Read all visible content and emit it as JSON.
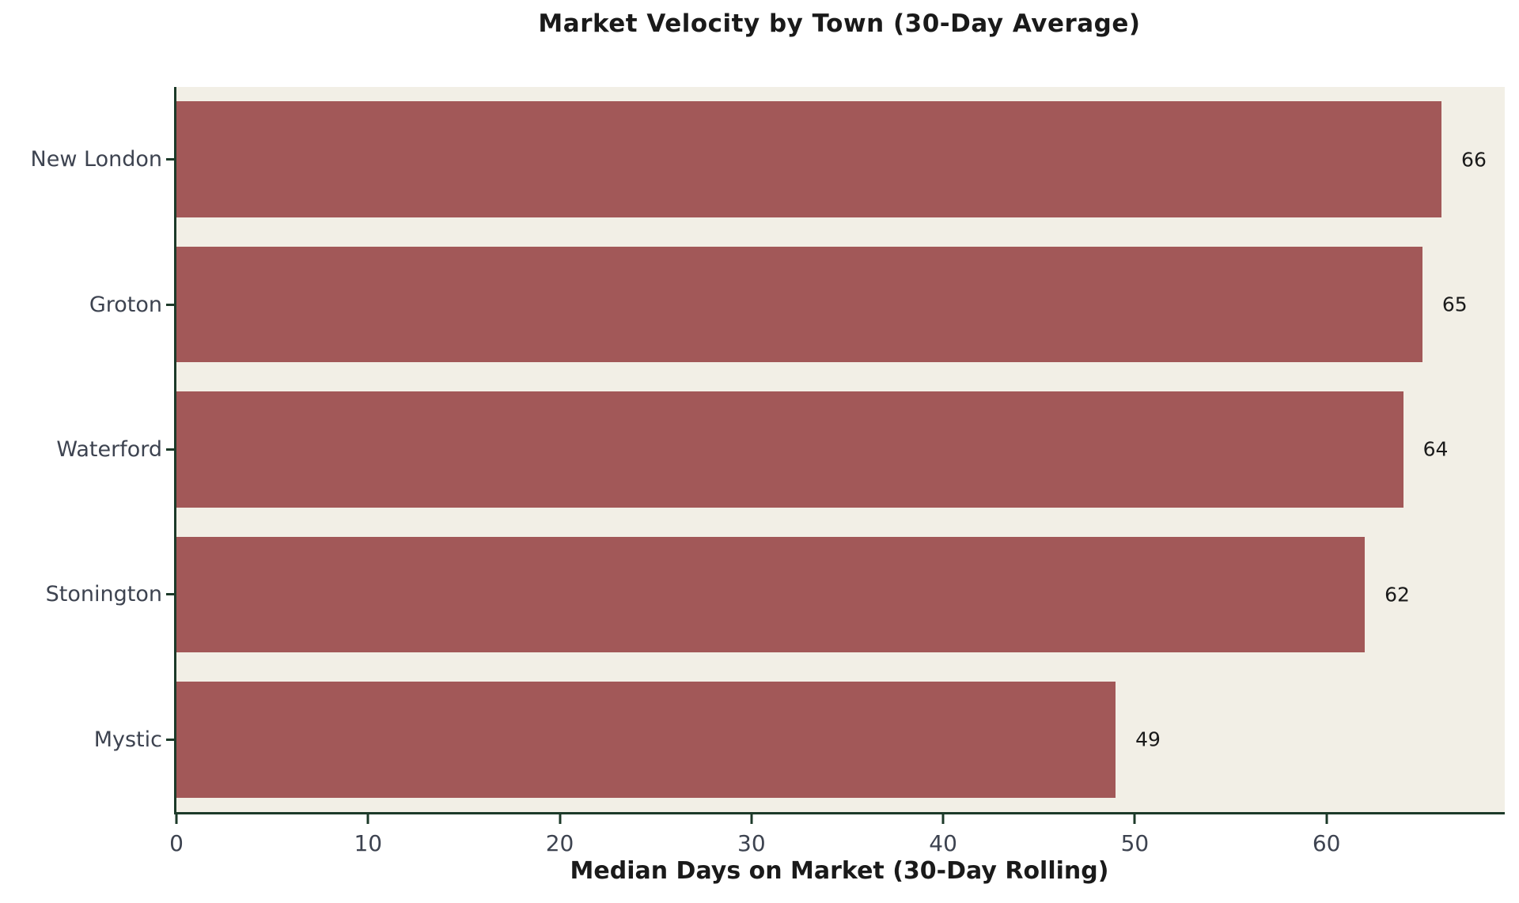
{
  "chart_data": {
    "type": "bar",
    "orientation": "horizontal",
    "title": "Market Velocity by Town (30-Day Average)",
    "xlabel": "Median Days on Market (30-Day Rolling)",
    "ylabel": "",
    "categories": [
      "New London",
      "Groton",
      "Waterford",
      "Stonington",
      "Mystic"
    ],
    "values": [
      66,
      65,
      64,
      62,
      49
    ],
    "bar_labels": [
      "66",
      "65",
      "64",
      "62",
      "49"
    ],
    "xticks": [
      0,
      10,
      20,
      30,
      40,
      50,
      60
    ],
    "xlim": [
      0,
      69.3
    ],
    "grid": false,
    "legend": null,
    "bar_height_fraction": 0.8,
    "style": {
      "bar_color": "#a25858",
      "plot_background": "#f2efe6",
      "page_background": "#ffffff",
      "spine_color": "#1c3a29",
      "title_color": "#1a1a1a",
      "value_label_color": "#1a1a1a",
      "tick_label_color": "#3d4350"
    }
  }
}
